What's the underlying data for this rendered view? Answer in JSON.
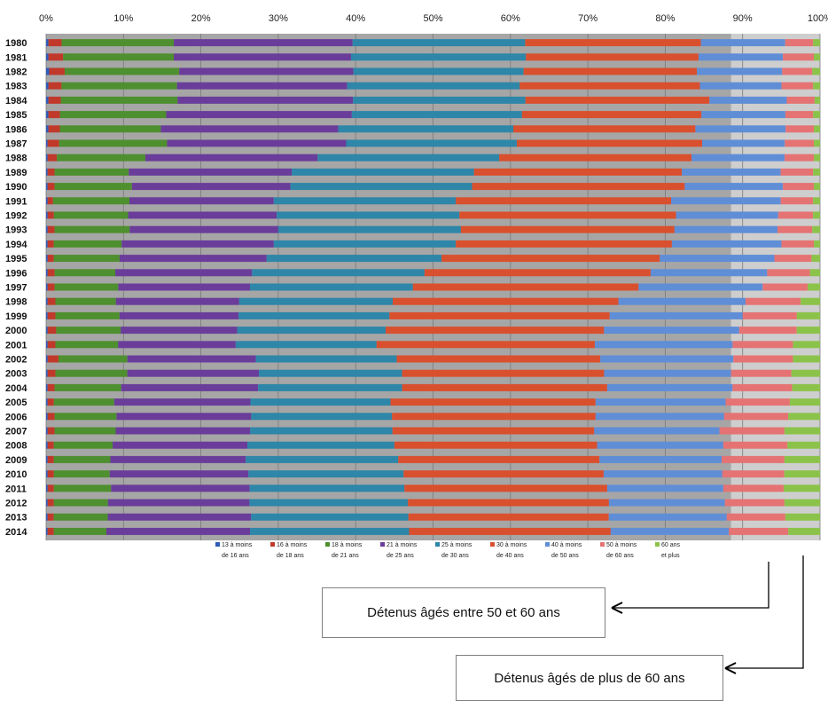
{
  "colors": {
    "background": "#a6a6a6",
    "highlight_band": "#ffffff",
    "gridline": "#7a7a7a",
    "arrow": "#000000",
    "series": [
      "#2e5cb8",
      "#c0392b",
      "#4e8f2f",
      "#6a3d9a",
      "#2e86a8",
      "#d9502e",
      "#5f8ed6",
      "#e57373",
      "#8bc34a"
    ]
  },
  "callouts": {
    "label_50_60": "Détenus âgés entre 50 et 60 ans",
    "label_60_plus": "Détenus âgés de plus de 60 ans"
  },
  "chart_data": {
    "type": "bar",
    "orientation": "horizontal",
    "stacked": "percent",
    "xlim": [
      0,
      100
    ],
    "x_ticks": [
      "0%",
      "10%",
      "20%",
      "30%",
      "40%",
      "50%",
      "60%",
      "70%",
      "80%",
      "90%",
      "100%"
    ],
    "grid": true,
    "legend_position": "bottom-inside",
    "categories": [
      "1980",
      "1981",
      "1982",
      "1983",
      "1984",
      "1985",
      "1986",
      "1987",
      "1988",
      "1989",
      "1990",
      "1991",
      "1992",
      "1993",
      "1994",
      "1995",
      "1996",
      "1997",
      "1998",
      "1999",
      "2000",
      "2001",
      "2002",
      "2003",
      "2004",
      "2005",
      "2006",
      "2007",
      "2008",
      "2009",
      "2010",
      "2011",
      "2012",
      "2013",
      "2014"
    ],
    "series": [
      {
        "name": "13 à moins de 16 ans",
        "legend_line1": "13 à moins",
        "legend_line2": "de 16 ans",
        "values": [
          0.3,
          0.3,
          0.4,
          0.3,
          0.3,
          0.3,
          0.3,
          0.2,
          0.2,
          0.2,
          0.2,
          0.2,
          0.2,
          0.2,
          0.2,
          0.2,
          0.2,
          0.2,
          0.2,
          0.2,
          0.2,
          0.2,
          0.2,
          0.2,
          0.2,
          0.2,
          0.2,
          0.2,
          0.2,
          0.2,
          0.2,
          0.2,
          0.2,
          0.2,
          0.2
        ]
      },
      {
        "name": "16 à moins de 18 ans",
        "legend_line1": "16 à moins",
        "legend_line2": "de 18 ans",
        "values": [
          1.7,
          1.9,
          2.0,
          1.7,
          1.6,
          1.5,
          1.5,
          1.5,
          1.2,
          0.9,
          0.9,
          0.7,
          0.8,
          0.9,
          0.8,
          0.8,
          0.9,
          0.9,
          1.0,
          1.0,
          1.1,
          1.0,
          1.4,
          1.0,
          0.9,
          0.8,
          0.9,
          0.9,
          0.8,
          0.8,
          0.8,
          0.8,
          0.8,
          0.8,
          0.8
        ]
      },
      {
        "name": "18 à moins de 21 ans",
        "legend_line1": "18 à moins",
        "legend_line2": "de 21 ans",
        "values": [
          14.5,
          14.3,
          14.8,
          15.0,
          15.1,
          13.8,
          13.2,
          14.1,
          11.5,
          9.6,
          10.0,
          9.9,
          9.6,
          9.7,
          8.8,
          8.5,
          7.8,
          8.2,
          7.8,
          8.3,
          8.3,
          8.1,
          8.9,
          9.3,
          8.6,
          7.8,
          8.0,
          7.9,
          7.6,
          7.3,
          7.2,
          7.4,
          7.0,
          7.0,
          6.8
        ]
      },
      {
        "name": "21 à moins de 25 ans",
        "legend_line1": "21 à moins",
        "legend_line2": "de 25 ans",
        "values": [
          23.1,
          22.9,
          22.5,
          22.1,
          22.7,
          24.1,
          23.2,
          23.4,
          22.4,
          21.1,
          20.5,
          18.7,
          19.2,
          19.2,
          19.7,
          19.0,
          17.6,
          17.0,
          15.9,
          15.4,
          15.0,
          15.2,
          16.6,
          17.0,
          17.7,
          17.6,
          17.4,
          17.4,
          17.4,
          17.5,
          17.9,
          17.9,
          18.3,
          18.6,
          18.6
        ]
      },
      {
        "name": "25 à moins de 30 ans",
        "legend_line1": "25 à moins",
        "legend_line2": "de 30 ans",
        "values": [
          22.3,
          22.6,
          22.0,
          22.4,
          22.3,
          22.1,
          22.9,
          22.3,
          23.6,
          23.6,
          23.5,
          23.6,
          23.6,
          23.6,
          23.6,
          22.6,
          22.2,
          21.0,
          19.8,
          19.5,
          19.1,
          18.2,
          18.2,
          18.5,
          18.6,
          18.1,
          18.2,
          18.4,
          19.0,
          19.7,
          20.0,
          20.0,
          20.5,
          20.4,
          20.6
        ]
      },
      {
        "name": "30 à moins de 40 ans",
        "legend_line1": "30 à moins",
        "legend_line2": "de 40 ans",
        "values": [
          22.7,
          22.3,
          22.4,
          23.4,
          23.8,
          23.3,
          23.8,
          24.2,
          25.0,
          26.9,
          27.5,
          27.9,
          28.0,
          27.6,
          28.0,
          28.2,
          29.1,
          29.1,
          29.1,
          28.5,
          28.1,
          28.2,
          26.3,
          26.1,
          26.5,
          26.5,
          26.3,
          26.1,
          26.2,
          26.0,
          25.8,
          26.2,
          26.0,
          26.0,
          26.1
        ]
      },
      {
        "name": "40 à moins de 50 ans",
        "legend_line1": "40 à moins",
        "legend_line2": "de 50 ans",
        "values": [
          10.9,
          10.9,
          11.0,
          10.6,
          10.0,
          10.9,
          11.8,
          10.8,
          12.1,
          12.8,
          12.7,
          14.2,
          13.2,
          13.3,
          14.2,
          14.8,
          15.0,
          16.0,
          16.4,
          17.2,
          17.4,
          17.8,
          17.2,
          16.4,
          16.2,
          16.8,
          16.6,
          16.2,
          16.3,
          15.8,
          15.3,
          15.0,
          15.0,
          15.3,
          15.3
        ]
      },
      {
        "name": "50 à moins de 60 ans",
        "legend_line1": "50 à moins",
        "legend_line2": "de 60 ans",
        "values": [
          3.6,
          4.0,
          3.9,
          4.1,
          3.6,
          3.6,
          3.7,
          3.8,
          3.8,
          4.2,
          4.0,
          4.2,
          4.5,
          4.5,
          4.2,
          4.8,
          5.5,
          5.8,
          7.1,
          7.0,
          7.4,
          7.8,
          7.7,
          7.8,
          7.7,
          8.3,
          8.3,
          8.4,
          8.3,
          8.1,
          8.0,
          7.8,
          7.7,
          7.6,
          7.7
        ]
      },
      {
        "name": "60 ans et plus",
        "legend_line1": "60 ans",
        "legend_line2": "et plus",
        "values": [
          0.9,
          0.8,
          1.0,
          0.9,
          0.7,
          0.9,
          0.8,
          0.8,
          0.8,
          0.9,
          0.8,
          0.9,
          0.9,
          1.0,
          0.8,
          1.1,
          1.3,
          1.6,
          2.5,
          3.0,
          3.0,
          3.5,
          3.5,
          3.7,
          3.6,
          3.9,
          4.1,
          4.6,
          4.2,
          4.6,
          4.6,
          4.7,
          4.6,
          4.5,
          4.1
        ]
      }
    ]
  }
}
